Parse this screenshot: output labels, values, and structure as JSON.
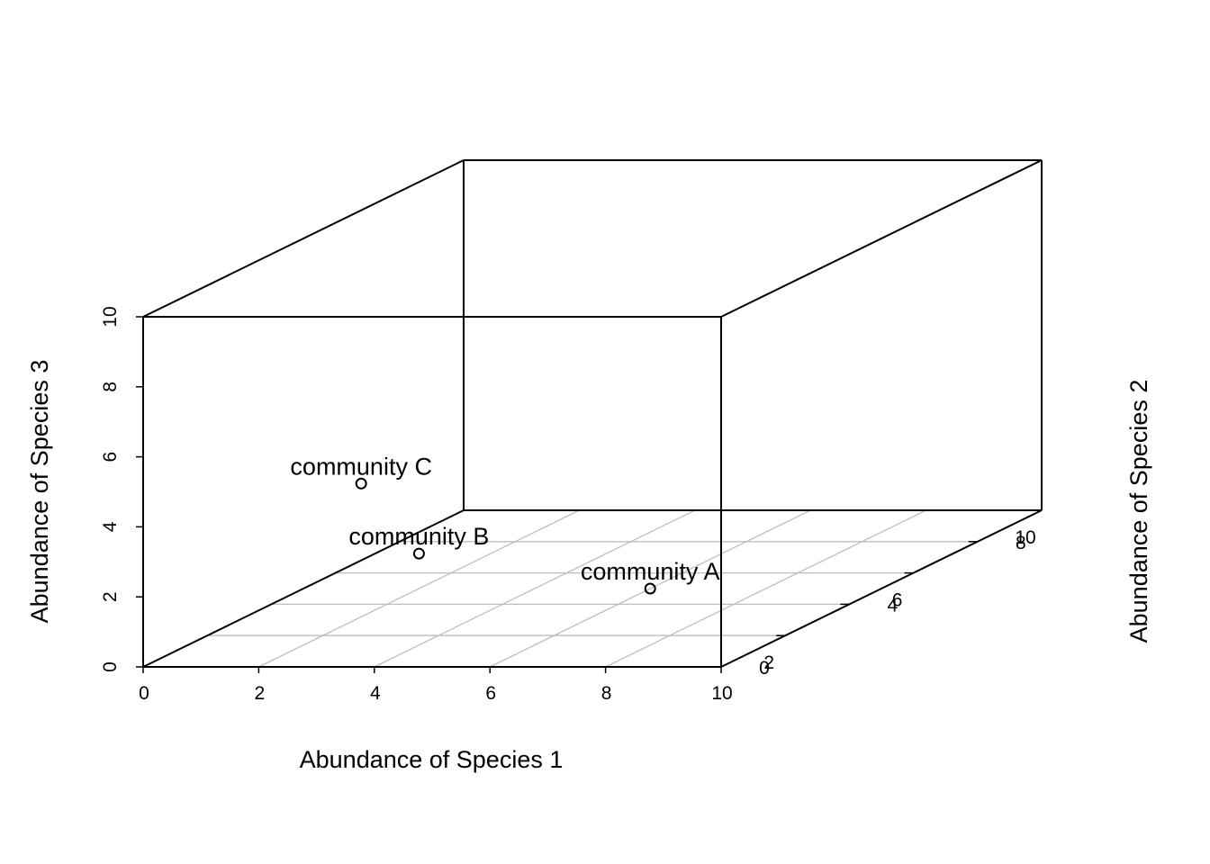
{
  "chart_data": {
    "type": "scatter3d",
    "title": "",
    "xlabel": "Abundance of Species 1",
    "ylabel": "Abundance of Species 2",
    "zlabel": "Abundance of Species 3",
    "xlim": [
      0,
      10
    ],
    "ylim": [
      0,
      10
    ],
    "zlim": [
      0,
      10
    ],
    "x_ticks": [
      0,
      2,
      4,
      6,
      8,
      10
    ],
    "y_ticks": [
      0,
      2,
      4,
      6,
      8,
      10
    ],
    "z_ticks": [
      0,
      2,
      4,
      6,
      8,
      10
    ],
    "grid": "floor",
    "points": [
      {
        "label": "community A",
        "x": 6,
        "y": 5,
        "z": 0
      },
      {
        "label": "community B",
        "x": 2,
        "y": 5,
        "z": 1
      },
      {
        "label": "community C",
        "x": 1,
        "y": 5,
        "z": 3
      }
    ]
  },
  "colors": {
    "box": "#000000",
    "grid": "#bebebe",
    "points": "#000000",
    "background": "#ffffff"
  }
}
